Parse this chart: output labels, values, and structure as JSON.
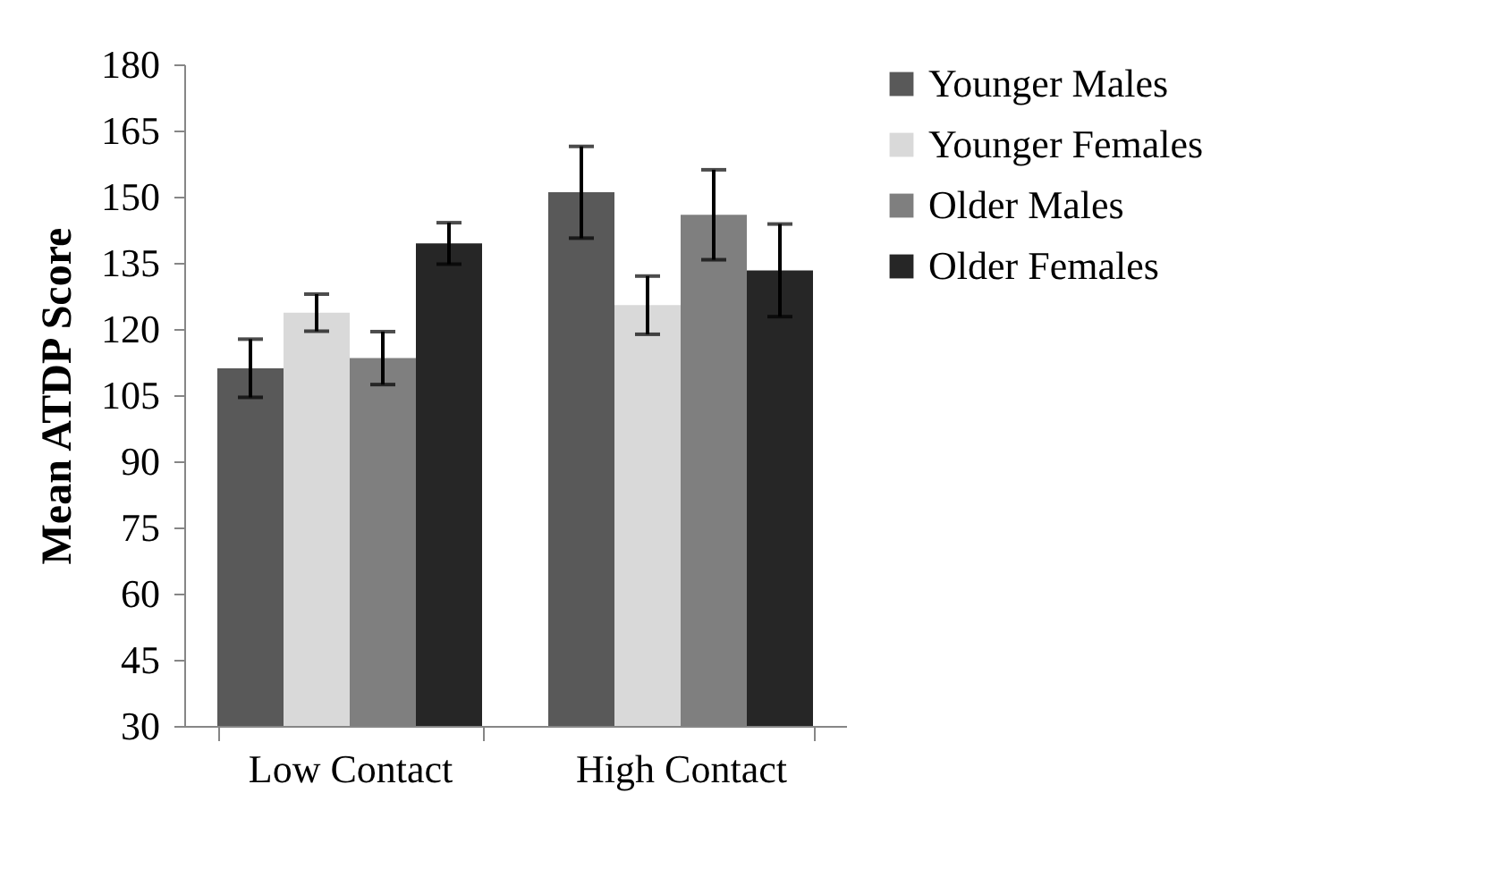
{
  "chart_data": {
    "type": "bar",
    "ylabel": "Mean ATDP Score",
    "categories": [
      "Low Contact",
      "High Contact"
    ],
    "series": [
      {
        "name": "Younger Males",
        "color": "#595959",
        "values": [
          111.1,
          151.0
        ],
        "errors": [
          6.6,
          10.4
        ]
      },
      {
        "name": "Younger Females",
        "color": "#d9d9d9",
        "values": [
          123.7,
          125.4
        ],
        "errors": [
          4.2,
          6.6
        ]
      },
      {
        "name": "Older Males",
        "color": "#7f7f7f",
        "values": [
          113.4,
          145.9
        ],
        "errors": [
          6.0,
          10.2
        ]
      },
      {
        "name": "Older Females",
        "color": "#262626",
        "values": [
          139.4,
          133.3
        ],
        "errors": [
          4.7,
          10.5
        ]
      }
    ],
    "ylim": [
      30,
      180
    ],
    "yticks": [
      30,
      45,
      60,
      75,
      90,
      105,
      120,
      135,
      150,
      165,
      180
    ],
    "grid": false,
    "legend": "right"
  }
}
